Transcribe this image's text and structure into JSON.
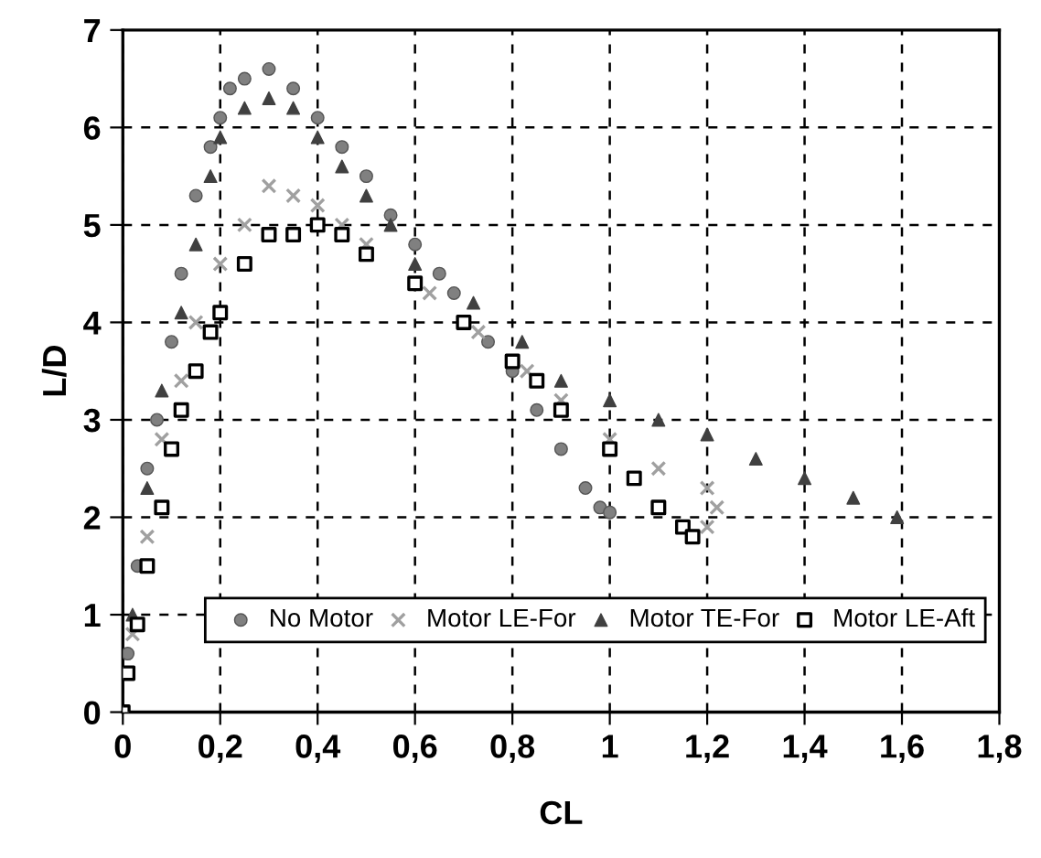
{
  "chart_data": {
    "type": "scatter",
    "xlabel": "CL",
    "ylabel": "L/D",
    "xlim": [
      0,
      1.8
    ],
    "ylim": [
      0,
      7
    ],
    "xticks": [
      0,
      {
        "value": 0.2,
        "label": "0,2"
      },
      {
        "value": 0.4,
        "label": "0,4"
      },
      {
        "value": 0.6,
        "label": "0,6"
      },
      {
        "value": 0.8,
        "label": "0,8"
      },
      1,
      {
        "value": 1.2,
        "label": "1,2"
      },
      {
        "value": 1.4,
        "label": "1,4"
      },
      {
        "value": 1.6,
        "label": "1,6"
      },
      {
        "value": 1.8,
        "label": "1,8"
      }
    ],
    "yticks": [
      0,
      1,
      2,
      3,
      4,
      5,
      6,
      7
    ],
    "grid": true,
    "legend": "bottom right",
    "series": [
      {
        "name": "No Motor",
        "color": "#808080",
        "marker": "circle",
        "x": [
          0.01,
          0.03,
          0.05,
          0.07,
          0.1,
          0.12,
          0.15,
          0.18,
          0.2,
          0.22,
          0.25,
          0.3,
          0.35,
          0.4,
          0.45,
          0.5,
          0.55,
          0.6,
          0.65,
          0.68,
          0.75,
          0.8,
          0.85,
          0.9,
          0.95,
          0.98,
          1.0
        ],
        "values": [
          0.6,
          1.5,
          2.5,
          3.0,
          3.8,
          4.5,
          5.3,
          5.8,
          6.1,
          6.4,
          6.5,
          6.6,
          6.4,
          6.1,
          5.8,
          5.5,
          5.1,
          4.8,
          4.5,
          4.3,
          3.8,
          3.5,
          3.1,
          2.7,
          2.3,
          2.1,
          2.05
        ]
      },
      {
        "name": "Motor LE-For",
        "color": "#a0a0a0",
        "marker": "cross",
        "x": [
          0,
          0.02,
          0.05,
          0.08,
          0.12,
          0.15,
          0.2,
          0.25,
          0.3,
          0.35,
          0.4,
          0.45,
          0.5,
          0.63,
          0.73,
          0.83,
          0.9,
          1.0,
          1.1,
          1.2,
          1.22,
          1.2
        ],
        "values": [
          0,
          0.8,
          1.8,
          2.8,
          3.4,
          4.0,
          4.6,
          5.0,
          5.4,
          5.3,
          5.2,
          5.0,
          4.8,
          4.3,
          3.9,
          3.5,
          3.2,
          2.8,
          2.5,
          2.3,
          2.1,
          1.9
        ]
      },
      {
        "name": "Motor TE-For",
        "color": "#404040",
        "marker": "triangle",
        "x": [
          0.02,
          0.05,
          0.08,
          0.12,
          0.15,
          0.18,
          0.2,
          0.25,
          0.3,
          0.35,
          0.4,
          0.45,
          0.5,
          0.55,
          0.6,
          0.72,
          0.82,
          0.9,
          1.0,
          1.1,
          1.2,
          1.3,
          1.4,
          1.5,
          1.59
        ],
        "values": [
          1.0,
          2.3,
          3.3,
          4.1,
          4.8,
          5.5,
          5.9,
          6.2,
          6.3,
          6.2,
          5.9,
          5.6,
          5.3,
          5.0,
          4.6,
          4.2,
          3.8,
          3.4,
          3.2,
          3.0,
          2.85,
          2.6,
          2.4,
          2.2,
          2.0
        ]
      },
      {
        "name": "Motor LE-Aft",
        "color": "#000000",
        "marker": "square",
        "x": [
          0,
          0.01,
          0.03,
          0.05,
          0.08,
          0.1,
          0.12,
          0.15,
          0.18,
          0.2,
          0.25,
          0.3,
          0.35,
          0.4,
          0.45,
          0.5,
          0.6,
          0.7,
          0.8,
          0.85,
          0.9,
          1.0,
          1.05,
          1.1,
          1.15,
          1.17
        ],
        "values": [
          0,
          0.4,
          0.9,
          1.5,
          2.1,
          2.7,
          3.1,
          3.5,
          3.9,
          4.1,
          4.6,
          4.9,
          4.9,
          5.0,
          4.9,
          4.7,
          4.4,
          4.0,
          3.6,
          3.4,
          3.1,
          2.7,
          2.4,
          2.1,
          1.9,
          1.8
        ]
      }
    ]
  }
}
